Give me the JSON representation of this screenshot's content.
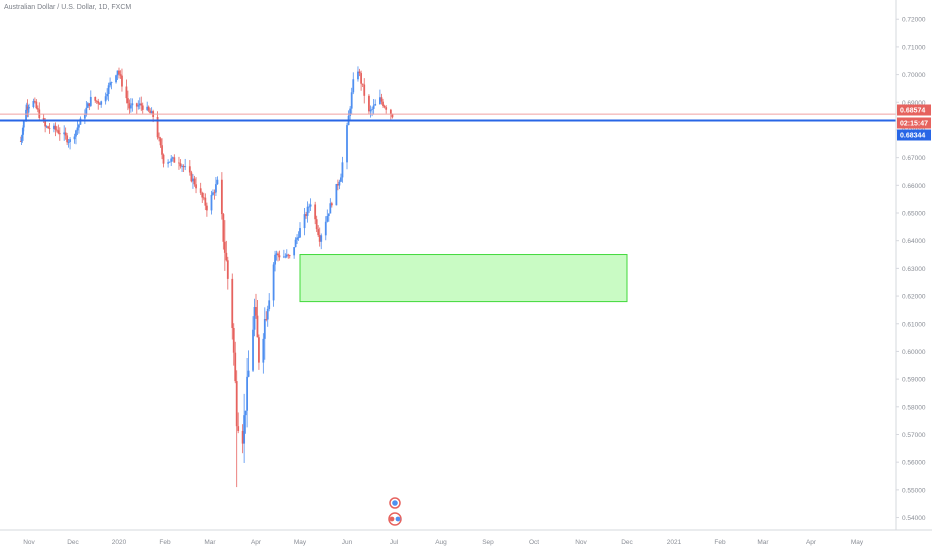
{
  "title": "Australian Dollar / U.S. Dollar, 1D, FXCM",
  "colors": {
    "up": "#4f8ff0",
    "down": "#e6625e",
    "zone_fill": "#c9fbc4",
    "zone_stroke": "#40d93a",
    "bid_line": "#2866e6",
    "ask_line": "#f1a0a0",
    "axis_text": "#8a8e96",
    "axis_line": "#d6d8de"
  },
  "chart_data": {
    "type": "candlestick",
    "ylim": [
      0.5355,
      0.7255
    ],
    "y_ticks": [
      "0.72000",
      "0.71000",
      "0.70000",
      "0.69000",
      "0.68000",
      "0.67000",
      "0.66000",
      "0.65000",
      "0.64000",
      "0.63000",
      "0.62000",
      "0.61000",
      "0.60000",
      "0.59000",
      "0.58000",
      "0.57000",
      "0.56000",
      "0.55000",
      "0.54000"
    ],
    "x_ticks": [
      "Nov",
      "Dec",
      "2020",
      "Feb",
      "Mar",
      "Apr",
      "May",
      "Jun",
      "Jul",
      "Aug",
      "Sep",
      "Oct",
      "Nov",
      "Dec",
      "2021",
      "Feb",
      "Mar",
      "Apr",
      "May"
    ],
    "price_labels": [
      {
        "text": "0.68574",
        "value": 0.68574,
        "color": "#e6625e"
      },
      {
        "text": "02:15:47",
        "value": 0.6836,
        "color": "#e6625e"
      },
      {
        "text": "0.68344",
        "value": 0.68344,
        "color": "#2866e6"
      }
    ],
    "horizontal_lines": [
      {
        "value": 0.68574,
        "color": "#f1a0a0"
      },
      {
        "value": 0.68344,
        "color": "#2866e6"
      }
    ],
    "zone": {
      "from": "2020-05-01",
      "to": "2020-12-01",
      "top": 0.635,
      "bottom": 0.618
    },
    "grid": false,
    "series_path": [
      [
        "2019-10-21",
        0.676
      ],
      [
        "2019-10-28",
        0.688
      ],
      [
        "2019-11-04",
        0.69
      ],
      [
        "2019-11-12",
        0.681
      ],
      [
        "2019-11-20",
        0.68
      ],
      [
        "2019-11-29",
        0.676
      ],
      [
        "2019-12-06",
        0.683
      ],
      [
        "2019-12-13",
        0.691
      ],
      [
        "2019-12-20",
        0.69
      ],
      [
        "2019-12-31",
        0.702
      ],
      [
        "2020-01-08",
        0.688
      ],
      [
        "2020-01-16",
        0.689
      ],
      [
        "2020-01-24",
        0.685
      ],
      [
        "2020-01-31",
        0.669
      ],
      [
        "2020-02-10",
        0.669
      ],
      [
        "2020-02-20",
        0.661
      ],
      [
        "2020-02-28",
        0.652
      ],
      [
        "2020-03-06",
        0.661
      ],
      [
        "2020-03-12",
        0.632
      ],
      [
        "2020-03-16",
        0.61
      ],
      [
        "2020-03-19",
        0.577
      ],
      [
        "2020-03-23",
        0.57
      ],
      [
        "2020-03-31",
        0.615
      ],
      [
        "2020-04-03",
        0.598
      ],
      [
        "2020-04-14",
        0.635
      ],
      [
        "2020-04-24",
        0.634
      ],
      [
        "2020-05-08",
        0.654
      ],
      [
        "2020-05-14",
        0.641
      ],
      [
        "2020-05-28",
        0.664
      ],
      [
        "2020-06-05",
        0.697
      ],
      [
        "2020-06-08",
        0.702
      ],
      [
        "2020-06-15",
        0.686
      ],
      [
        "2020-06-22",
        0.691
      ],
      [
        "2020-06-30",
        0.6855
      ]
    ],
    "wick_lows": [
      {
        "date": "2020-03-19",
        "value": 0.551
      }
    ]
  }
}
